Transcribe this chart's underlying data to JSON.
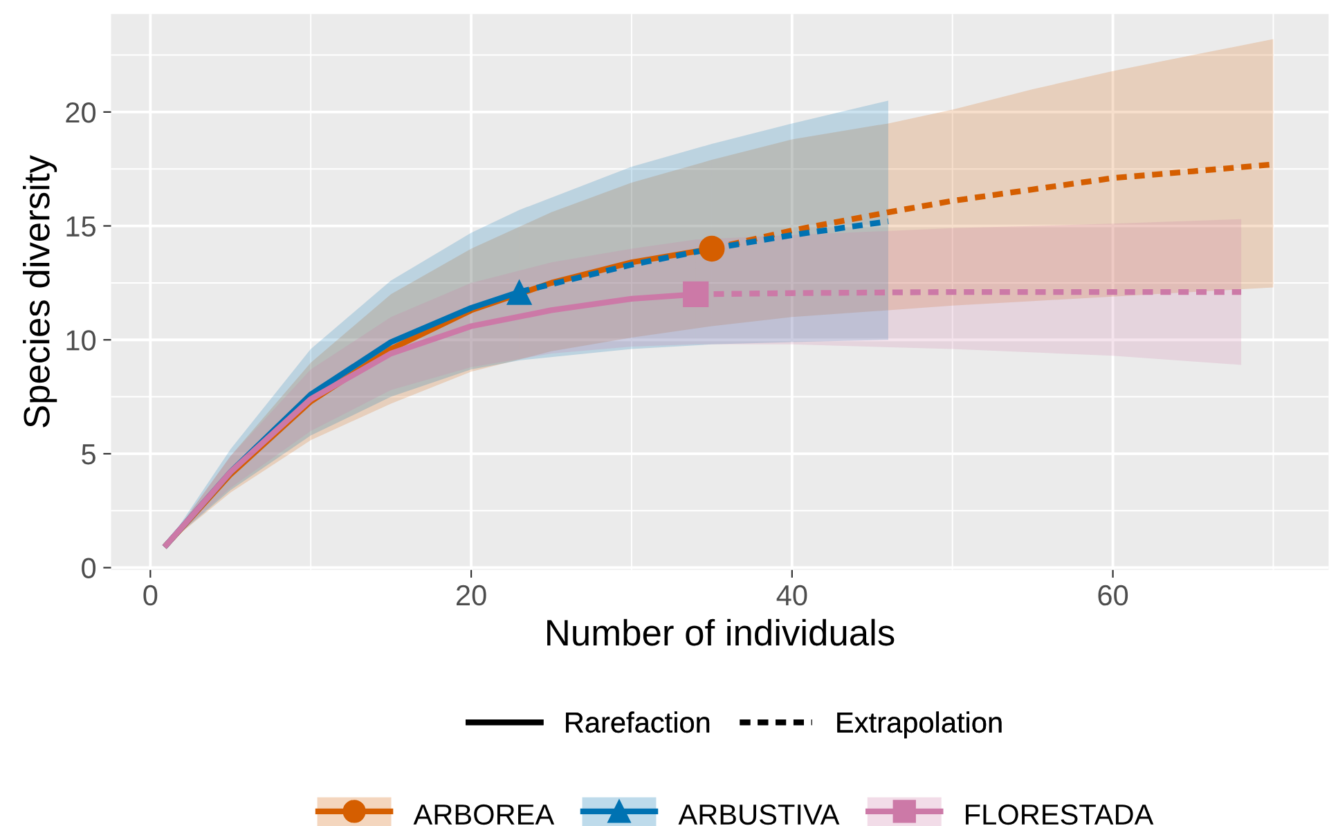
{
  "chart_data": {
    "type": "line",
    "xlabel": "Number of individuals",
    "ylabel": "Species diversity",
    "xlim": [
      -2.45,
      73.45
    ],
    "ylim": [
      -0.1,
      24.3
    ],
    "xticks": [
      0,
      20,
      40,
      60
    ],
    "yticks": [
      0,
      5,
      10,
      15,
      20
    ],
    "grid": true,
    "legend": "bottom",
    "annotations": [
      "Rarefaction",
      "Extrapolation"
    ],
    "series": [
      {
        "name": "ARBOREA",
        "color": "#d55e00",
        "line_style": "solid",
        "x": [
          1,
          5,
          10,
          15,
          20,
          25,
          30,
          35
        ],
        "values": [
          1,
          4.1,
          7.3,
          9.6,
          11.3,
          12.5,
          13.4,
          14.0
        ],
        "lower": [
          1,
          3.3,
          5.6,
          7.2,
          8.6,
          9.5,
          10.1,
          10.6
        ],
        "upper": [
          1,
          4.9,
          9.0,
          12.0,
          14.0,
          15.6,
          16.9,
          17.9
        ]
      },
      {
        "color": "#d55e00",
        "line_style": "dashed",
        "x": [
          35,
          40,
          46,
          50,
          55,
          60,
          65,
          70
        ],
        "values": [
          14.0,
          14.8,
          15.6,
          16.1,
          16.6,
          17.1,
          17.4,
          17.7
        ],
        "lower": [
          10.6,
          11.0,
          11.3,
          11.5,
          11.7,
          11.9,
          12.1,
          12.3
        ],
        "upper": [
          17.9,
          18.8,
          19.5,
          20.1,
          21.0,
          21.8,
          22.5,
          23.2
        ]
      },
      {
        "name": "ARBUSTIVA",
        "color": "#0072b2",
        "line_style": "solid",
        "x": [
          1,
          5,
          10,
          15,
          20,
          23
        ],
        "values": [
          1,
          4.2,
          7.6,
          9.9,
          11.4,
          12.1
        ],
        "lower": [
          1,
          3.4,
          5.8,
          7.5,
          8.7,
          9.1
        ],
        "upper": [
          1,
          5.2,
          9.6,
          12.6,
          14.7,
          15.7
        ]
      },
      {
        "color": "#0072b2",
        "line_style": "dashed",
        "x": [
          23,
          30,
          35,
          40,
          46
        ],
        "values": [
          12.1,
          13.3,
          14.0,
          14.6,
          15.2
        ],
        "lower": [
          9.1,
          9.6,
          9.8,
          9.9,
          10.0
        ],
        "upper": [
          15.7,
          17.6,
          18.6,
          19.5,
          20.5
        ]
      },
      {
        "name": "FLORESTADA",
        "color": "#cc79a7",
        "line_style": "solid",
        "x": [
          1,
          5,
          10,
          15,
          20,
          25,
          30,
          34
        ],
        "values": [
          1,
          4.2,
          7.4,
          9.4,
          10.6,
          11.3,
          11.8,
          12.0
        ],
        "lower": [
          1,
          3.5,
          6.0,
          7.8,
          8.8,
          9.4,
          9.7,
          9.8
        ],
        "upper": [
          1,
          4.9,
          8.7,
          11.0,
          12.5,
          13.4,
          14.0,
          14.4
        ]
      },
      {
        "color": "#cc79a7",
        "line_style": "dashed",
        "x": [
          34,
          40,
          50,
          60,
          68
        ],
        "values": [
          12.0,
          12.05,
          12.1,
          12.1,
          12.1
        ],
        "lower": [
          9.8,
          9.8,
          9.6,
          9.3,
          8.9
        ],
        "upper": [
          14.4,
          14.6,
          14.9,
          15.1,
          15.3
        ]
      },
      {
        "type": "scatter",
        "color": "#d55e00",
        "marker": "circle",
        "x": [
          35
        ],
        "values": [
          14.0
        ]
      },
      {
        "type": "scatter",
        "color": "#0072b2",
        "marker": "triangle",
        "x": [
          23
        ],
        "values": [
          12.1
        ]
      },
      {
        "type": "scatter",
        "color": "#cc79a7",
        "marker": "square",
        "x": [
          34
        ],
        "values": [
          12.0
        ]
      }
    ]
  }
}
